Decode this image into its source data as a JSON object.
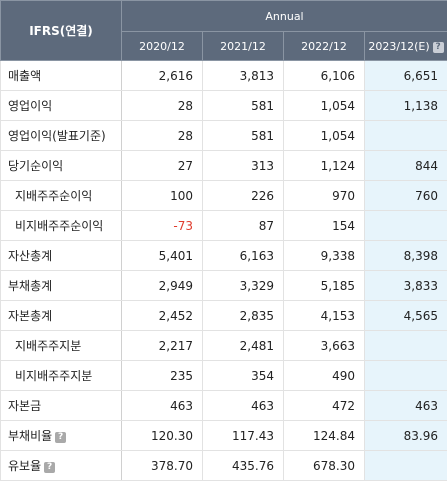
{
  "header": {
    "label": "IFRS(연결)",
    "group": "Annual",
    "years": [
      "2020/12",
      "2021/12",
      "2022/12",
      "2023/12(E)"
    ]
  },
  "rows": [
    {
      "label": "매출액",
      "values": [
        "2,616",
        "3,813",
        "6,106",
        "6,651"
      ]
    },
    {
      "label": "영업이익",
      "values": [
        "28",
        "581",
        "1,054",
        "1,138"
      ]
    },
    {
      "label": "영업이익(발표기준)",
      "values": [
        "28",
        "581",
        "1,054",
        ""
      ]
    },
    {
      "label": "당기순이익",
      "values": [
        "27",
        "313",
        "1,124",
        "844"
      ]
    },
    {
      "label": "지배주주순이익",
      "values": [
        "100",
        "226",
        "970",
        "760"
      ]
    },
    {
      "label": "비지배주주순이익",
      "values": [
        "-73",
        "87",
        "154",
        ""
      ]
    },
    {
      "label": "자산총계",
      "values": [
        "5,401",
        "6,163",
        "9,338",
        "8,398"
      ]
    },
    {
      "label": "부채총계",
      "values": [
        "2,949",
        "3,329",
        "5,185",
        "3,833"
      ]
    },
    {
      "label": "자본총계",
      "values": [
        "2,452",
        "2,835",
        "4,153",
        "4,565"
      ]
    },
    {
      "label": "지배주주지분",
      "values": [
        "2,217",
        "2,481",
        "3,663",
        ""
      ]
    },
    {
      "label": "비지배주주지분",
      "values": [
        "235",
        "354",
        "490",
        ""
      ]
    },
    {
      "label": "자본금",
      "values": [
        "463",
        "463",
        "472",
        "463"
      ]
    },
    {
      "label": "부채비율",
      "values": [
        "120.30",
        "117.43",
        "124.84",
        "83.96"
      ]
    },
    {
      "label": "유보율",
      "values": [
        "378.70",
        "435.76",
        "678.30",
        ""
      ]
    }
  ]
}
